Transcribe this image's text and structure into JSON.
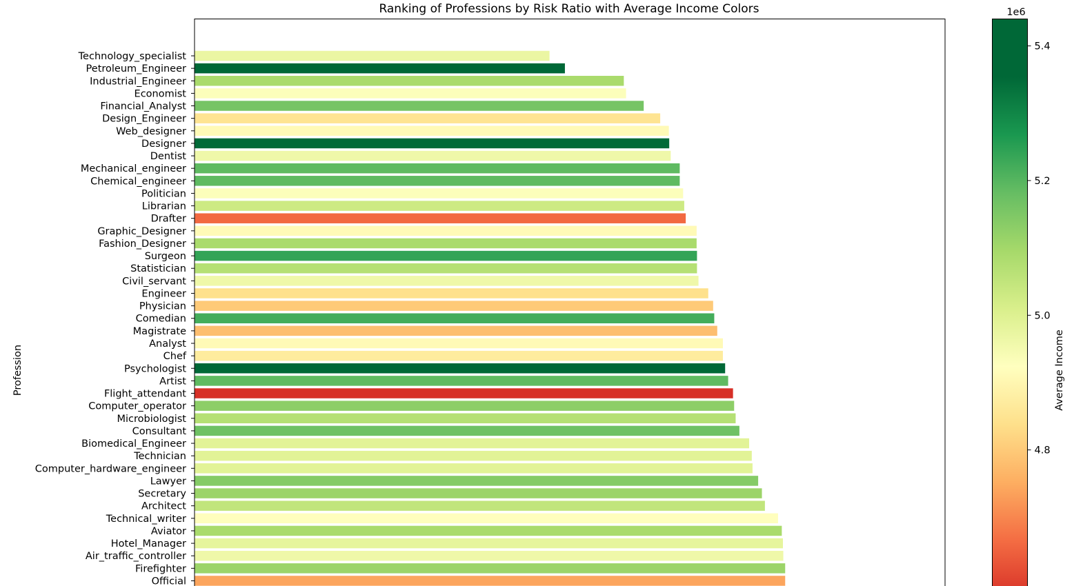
{
  "chart_data": {
    "type": "bar",
    "orientation": "horizontal",
    "title": "Ranking of Professions by Risk Ratio with Average Income Colors",
    "xlabel": "",
    "ylabel": "Profession",
    "categories": [
      "Technology_specialist",
      "Petroleum_Engineer",
      "Industrial_Engineer",
      "Economist",
      "Financial_Analyst",
      "Design_Engineer",
      "Web_designer",
      "Designer",
      "Dentist",
      "Mechanical_engineer",
      "Chemical_engineer",
      "Politician",
      "Librarian",
      "Drafter",
      "Graphic_Designer",
      "Fashion_Designer",
      "Surgeon",
      "Statistician",
      "Civil_servant",
      "Engineer",
      "Physician",
      "Comedian",
      "Magistrate",
      "Analyst",
      "Chef",
      "Psychologist",
      "Artist",
      "Flight_attendant",
      "Computer_operator",
      "Microbiologist",
      "Consultant",
      "Biomedical_Engineer",
      "Technician",
      "Computer_hardware_engineer",
      "Lawyer",
      "Secretary",
      "Architect",
      "Technical_writer",
      "Aviator",
      "Hotel_Manager",
      "Air_traffic_controller",
      "Firefighter",
      "Official"
    ],
    "values": [
      0.0946,
      0.0987,
      0.1144,
      0.115,
      0.1197,
      0.1241,
      0.1264,
      0.1265,
      0.1269,
      0.1293,
      0.1293,
      0.1302,
      0.1305,
      0.1309,
      0.1338,
      0.1338,
      0.1339,
      0.1339,
      0.1343,
      0.1369,
      0.1382,
      0.1385,
      0.1393,
      0.1408,
      0.1408,
      0.1414,
      0.1422,
      0.1435,
      0.1438,
      0.1442,
      0.1452,
      0.1478,
      0.1485,
      0.1487,
      0.1502,
      0.1512,
      0.152,
      0.1555,
      0.1565,
      0.1568,
      0.1569,
      0.1574,
      0.1574
    ],
    "average_income": [
      4970000,
      5440000,
      5090000,
      4930000,
      5160000,
      4850000,
      4910000,
      5350000,
      4960000,
      5190000,
      5190000,
      4930000,
      5030000,
      4660000,
      4910000,
      5090000,
      5240000,
      5070000,
      4960000,
      4840000,
      4800000,
      5220000,
      4780000,
      4910000,
      4870000,
      5370000,
      5190000,
      4580000,
      5130000,
      5070000,
      5170000,
      4990000,
      4990000,
      4990000,
      5140000,
      5110000,
      5050000,
      4920000,
      5090000,
      4980000,
      4960000,
      5110000,
      4740000
    ],
    "xlim": [
      0,
      0.2
    ],
    "colormap": "RdYlGn",
    "colorbar": {
      "label": "Average Income",
      "offset_text": "1e6",
      "ticks": [
        "4.8",
        "5.0",
        "5.2",
        "5.4"
      ],
      "tick_values": [
        4.8,
        5.0,
        5.2,
        5.4
      ],
      "range": [
        4.58,
        5.44
      ]
    },
    "grid": false
  }
}
